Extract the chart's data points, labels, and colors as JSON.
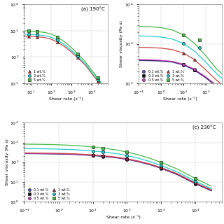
{
  "title_a": "(a) 190°C",
  "title_c": "(c) 230°C",
  "xlabel": "Shear rate (s⁻¹)",
  "ylabel": "Shear viscosity (Pa s)",
  "colors": {
    "0.1": "#5555bb",
    "0.3": "#111111",
    "0.5": "#cc44cc",
    "1": "#cc4444",
    "3": "#22cccc",
    "5": "#44bb44"
  },
  "markers": {
    "0.1": "o",
    "0.3": "s",
    "0.5": "o",
    "1": "^",
    "3": "o",
    "5": "s"
  },
  "panel_a": {
    "show_concentrations": [
      "1",
      "3",
      "5"
    ],
    "xlim": [
      5,
      60000
    ],
    "ylim": [
      10,
      10000
    ],
    "curves": {
      "1": {
        "x": [
          5,
          10,
          20,
          50,
          100,
          200,
          500,
          1000,
          2000,
          5000,
          10000,
          20000,
          40000
        ],
        "y": [
          620,
          610,
          590,
          550,
          480,
          380,
          240,
          155,
          95,
          48,
          24,
          12,
          6
        ]
      },
      "3": {
        "x": [
          5,
          10,
          20,
          50,
          100,
          200,
          500,
          1000,
          2000,
          5000,
          10000,
          20000,
          40000
        ],
        "y": [
          750,
          730,
          700,
          650,
          570,
          450,
          280,
          180,
          110,
          55,
          27,
          14,
          7
        ]
      },
      "5": {
        "x": [
          5,
          10,
          20,
          50,
          100,
          200,
          500,
          1000,
          2000,
          5000,
          10000,
          20000,
          40000
        ],
        "y": [
          1000,
          970,
          930,
          860,
          750,
          590,
          360,
          230,
          135,
          65,
          32,
          16,
          7.5
        ]
      }
    },
    "points": {
      "1": {
        "x": [
          8,
          20,
          200,
          2000,
          20000
        ],
        "y": [
          615,
          590,
          380,
          95,
          12
        ]
      },
      "3": {
        "x": [
          8,
          20,
          200,
          2000,
          20000
        ],
        "y": [
          735,
          700,
          450,
          110,
          14
        ]
      },
      "5": {
        "x": [
          8,
          20,
          200,
          2000,
          20000
        ],
        "y": [
          975,
          930,
          590,
          135,
          16
        ]
      }
    }
  },
  "panel_b": {
    "show_concentrations": [
      "0.1",
      "0.3",
      "0.5",
      "1",
      "3",
      "5"
    ],
    "xlim": [
      0.1,
      500
    ],
    "ylim": [
      100,
      10000
    ],
    "curves": {
      "0.1": {
        "x": [
          0.1,
          0.3,
          1,
          3,
          10,
          30,
          100,
          300,
          500
        ],
        "y": [
          380,
          375,
          365,
          345,
          290,
          215,
          135,
          82,
          68
        ]
      },
      "0.3": {
        "x": [
          0.1,
          0.3,
          1,
          3,
          10,
          30,
          100,
          300,
          500
        ],
        "y": [
          390,
          385,
          375,
          355,
          298,
          222,
          140,
          85,
          70
        ]
      },
      "0.5": {
        "x": [
          0.1,
          0.3,
          1,
          3,
          10,
          30,
          100,
          300,
          500
        ],
        "y": [
          400,
          395,
          383,
          362,
          305,
          228,
          144,
          88,
          72
        ]
      },
      "1": {
        "x": [
          0.1,
          0.3,
          1,
          3,
          10,
          30,
          100,
          300,
          500
        ],
        "y": [
          820,
          810,
          780,
          720,
          580,
          400,
          215,
          118,
          95
        ]
      },
      "3": {
        "x": [
          0.1,
          0.3,
          1,
          3,
          10,
          30,
          100,
          300,
          500
        ],
        "y": [
          1600,
          1570,
          1490,
          1340,
          1020,
          660,
          340,
          175,
          135
        ]
      },
      "5": {
        "x": [
          0.1,
          0.3,
          1,
          3,
          10,
          30,
          100,
          300,
          500
        ],
        "y": [
          2800,
          2740,
          2580,
          2280,
          1680,
          1040,
          490,
          230,
          175
        ]
      }
    },
    "points": {
      "0.1": {
        "x": [
          10,
          30
        ],
        "y": [
          290,
          215
        ]
      },
      "0.3": {
        "x": [
          10,
          30
        ],
        "y": [
          298,
          222
        ]
      },
      "0.5": {
        "x": [
          10,
          30
        ],
        "y": [
          305,
          228
        ]
      },
      "1": {
        "x": [
          10,
          30
        ],
        "y": [
          580,
          400
        ]
      },
      "3": {
        "x": [
          10,
          50
        ],
        "y": [
          1020,
          800
        ]
      },
      "5": {
        "x": [
          10,
          50
        ],
        "y": [
          1680,
          1280
        ]
      }
    }
  },
  "panel_c": {
    "show_concentrations": [
      "0.1",
      "0.3",
      "0.5",
      "1",
      "3",
      "5"
    ],
    "xlim": [
      0.1,
      60000
    ],
    "ylim": [
      1,
      10000
    ],
    "curves": {
      "0.1": {
        "x": [
          0.1,
          0.3,
          1,
          3,
          10,
          20,
          50,
          100,
          200,
          500,
          1000,
          3000,
          10000,
          30000
        ],
        "y": [
          270,
          265,
          258,
          244,
          215,
          195,
          165,
          138,
          108,
          72,
          48,
          23,
          8,
          3.5
        ]
      },
      "0.3": {
        "x": [
          0.1,
          0.3,
          1,
          3,
          10,
          20,
          50,
          100,
          200,
          500,
          1000,
          3000,
          10000,
          30000
        ],
        "y": [
          278,
          273,
          265,
          251,
          221,
          201,
          170,
          142,
          112,
          74,
          50,
          24,
          8.5,
          3.6
        ]
      },
      "0.5": {
        "x": [
          0.1,
          0.3,
          1,
          3,
          10,
          20,
          50,
          100,
          200,
          500,
          1000,
          3000,
          10000,
          30000
        ],
        "y": [
          282,
          277,
          269,
          255,
          224,
          204,
          172,
          144,
          114,
          76,
          51,
          25,
          8.8,
          3.8
        ]
      },
      "1": {
        "x": [
          0.1,
          0.3,
          1,
          3,
          10,
          20,
          50,
          100,
          200,
          500,
          1000,
          3000,
          10000,
          30000
        ],
        "y": [
          295,
          290,
          281,
          266,
          235,
          213,
          180,
          150,
          118,
          79,
          53,
          26,
          9,
          4
        ]
      },
      "3": {
        "x": [
          0.1,
          0.3,
          1,
          3,
          10,
          20,
          50,
          100,
          200,
          500,
          1000,
          3000,
          10000,
          30000
        ],
        "y": [
          490,
          480,
          460,
          430,
          370,
          330,
          270,
          215,
          165,
          105,
          68,
          32,
          11,
          4.5
        ]
      },
      "5": {
        "x": [
          0.1,
          0.3,
          1,
          3,
          10,
          20,
          50,
          100,
          200,
          500,
          1000,
          3000,
          10000,
          30000
        ],
        "y": [
          820,
          800,
          762,
          705,
          590,
          520,
          415,
          325,
          245,
          152,
          98,
          45,
          15,
          6
        ]
      }
    },
    "points": {
      "0.1": {
        "x": [
          10,
          20,
          100,
          1000,
          10000
        ],
        "y": [
          215,
          195,
          138,
          48,
          8
        ]
      },
      "0.3": {
        "x": [
          10,
          20,
          100,
          1000,
          10000
        ],
        "y": [
          221,
          201,
          142,
          50,
          8.5
        ]
      },
      "0.5": {
        "x": [
          10,
          20,
          100,
          1000,
          10000
        ],
        "y": [
          224,
          204,
          144,
          51,
          8.8
        ]
      },
      "1": {
        "x": [
          10,
          20,
          100,
          1000,
          10000
        ],
        "y": [
          235,
          213,
          150,
          53,
          9
        ]
      },
      "3": {
        "x": [
          10,
          20,
          100,
          1000,
          10000
        ],
        "y": [
          370,
          330,
          215,
          68,
          11
        ]
      },
      "5": {
        "x": [
          10,
          20,
          100,
          1000,
          10000
        ],
        "y": [
          590,
          520,
          325,
          98,
          15
        ]
      }
    }
  },
  "legend_a_concs": [
    "1",
    "3",
    "5"
  ],
  "legend_a_labels": [
    "1 wt.%",
    "3 wt.%",
    "5 wt.%"
  ],
  "legend_bc_concs": [
    "0.1",
    "0.3",
    "0.5",
    "1",
    "3",
    "5"
  ],
  "legend_bc_labels": [
    "0.1 wt.%",
    "0.3 wt.%",
    "0.5 wt.%",
    "1 wt.%",
    "3 wt.%",
    "5 wt.%"
  ],
  "background_color": "#ffffff"
}
